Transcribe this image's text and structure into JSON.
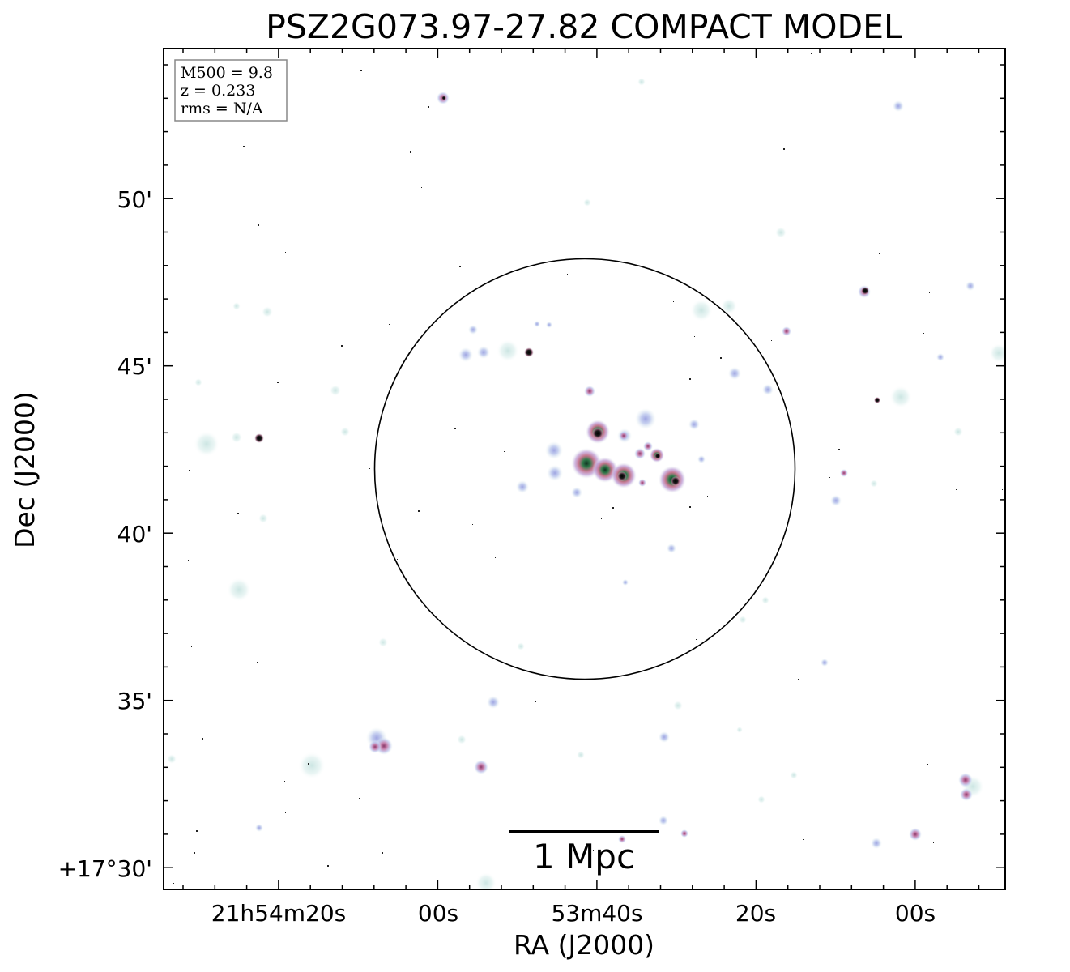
{
  "figure": {
    "title": "PSZ2G073.97-27.82 COMPACT MODEL",
    "xlabel": "RA (J2000)",
    "ylabel": "Dec (J2000)"
  },
  "info_box": {
    "lines": [
      "M500 = 9.8",
      "z = 0.233",
      "rms = N/A"
    ]
  },
  "scalebar": {
    "label": "1 Mpc"
  },
  "x_ticks": [
    {
      "label": "21h54m20s"
    },
    {
      "label": "00s"
    },
    {
      "label": "53m40s"
    },
    {
      "label": "20s"
    },
    {
      "label": "00s"
    }
  ],
  "y_ticks": [
    {
      "label": "50'"
    },
    {
      "label": "45'"
    },
    {
      "label": "40'"
    },
    {
      "label": "35'"
    },
    {
      "label": "+17°30'"
    }
  ],
  "colors": {
    "frame": "#000000",
    "background": "#ffffff",
    "faint_emission": "#cfe8e6",
    "mid_emission": "#b9bde8",
    "bright_emission": "#c58aa8",
    "core_emission": "#2f7a4a",
    "peak_emission": "#000000"
  }
}
